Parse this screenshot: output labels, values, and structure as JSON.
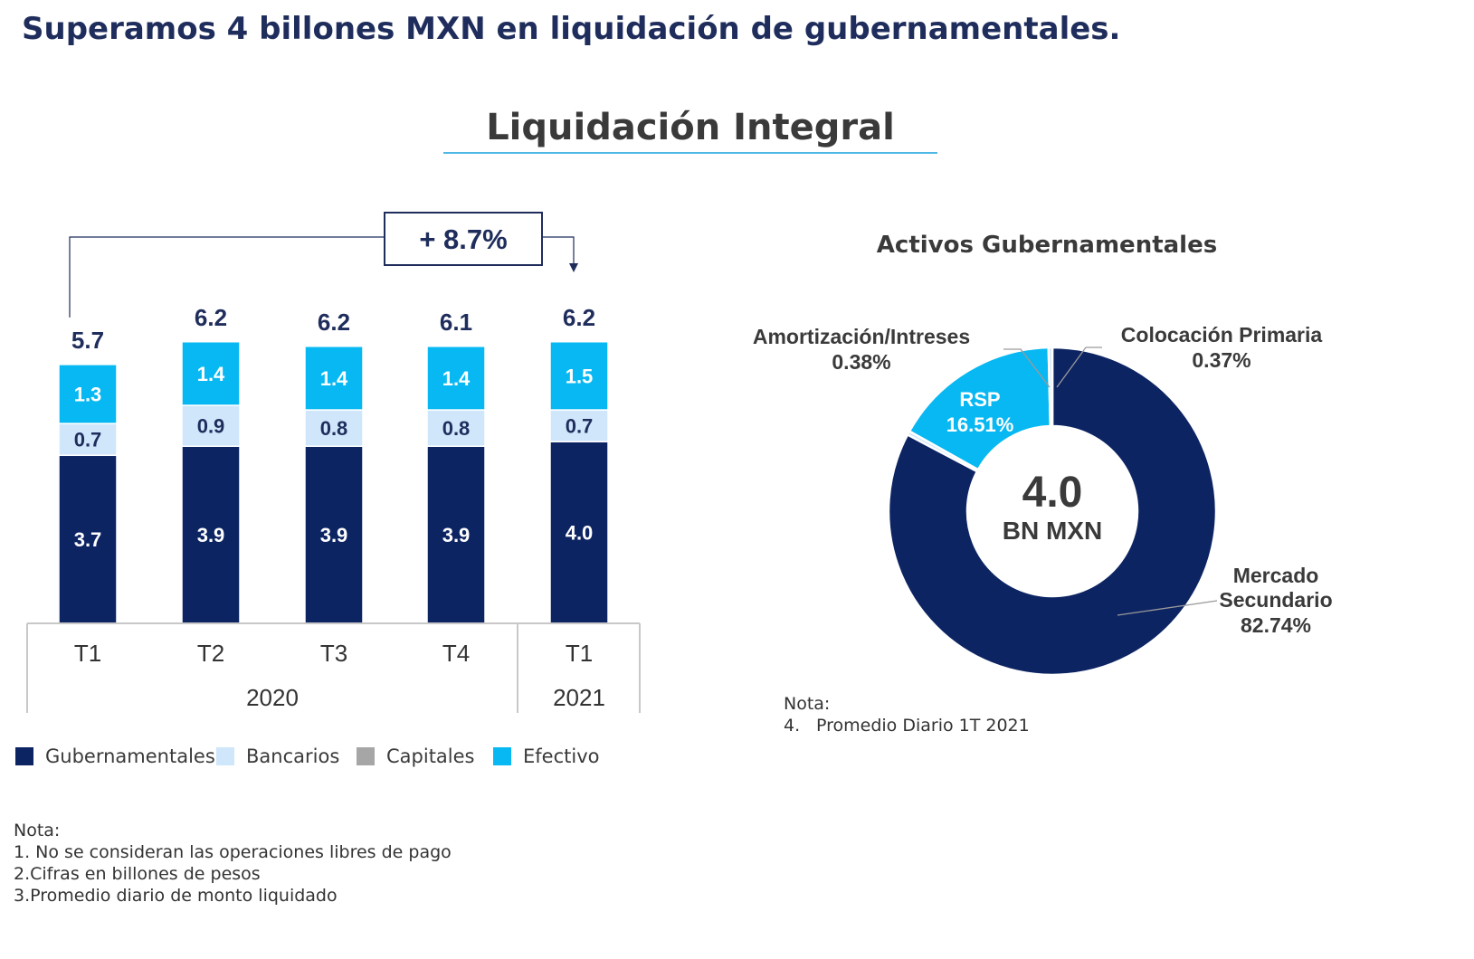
{
  "headline": "Superamos 4 billones MXN en liquidación de gubernamentales.",
  "section_title": "Liquidación Integral",
  "colors": {
    "gubernamentales": "#0d2463",
    "bancarios": "#cfe6fb",
    "capitales": "#a6a6a6",
    "efectivo": "#07b8f2",
    "headline": "#1f2d5c",
    "rule": "#4fb8e6"
  },
  "legend": [
    {
      "label": "Gubernamentales",
      "color": "#0d2463",
      "icon": "square"
    },
    {
      "label": "Bancarios",
      "color": "#cfe6fb",
      "icon": "square"
    },
    {
      "label": "Capitales",
      "color": "#a6a6a6",
      "icon": "square"
    },
    {
      "label": "Efectivo",
      "color": "#07b8f2",
      "icon": "square"
    }
  ],
  "growth_label": "+ 8.7%",
  "year_groups": [
    {
      "label": "2020",
      "span": 4
    },
    {
      "label": "2021",
      "span": 1
    }
  ],
  "notes_left": {
    "title": "Nota:",
    "lines": [
      "1. No se consideran las operaciones libres de pago",
      "2.Cifras en billones de pesos",
      "3.Promedio diario de monto liquidado"
    ]
  },
  "notes_right": {
    "title": "Nota:",
    "number": "4.",
    "line": "Promedio Diario 1T 2021"
  },
  "chart_data": [
    {
      "type": "bar",
      "stacked": true,
      "categories": [
        "T1",
        "T2",
        "T3",
        "T4",
        "T1"
      ],
      "series": [
        {
          "name": "Gubernamentales",
          "values": [
            3.7,
            3.9,
            3.9,
            3.9,
            4.0
          ]
        },
        {
          "name": "Bancarios",
          "values": [
            0.7,
            0.9,
            0.8,
            0.8,
            0.7
          ]
        },
        {
          "name": "Capitales",
          "values": [
            0,
            0,
            0,
            0,
            0
          ]
        },
        {
          "name": "Efectivo",
          "values": [
            1.3,
            1.4,
            1.4,
            1.4,
            1.5
          ]
        }
      ],
      "totals": [
        "5.7",
        "6.2",
        "6.2",
        "6.1",
        "6.2"
      ],
      "segment_labels": [
        [
          "3.7",
          "0.7",
          "1.3"
        ],
        [
          "3.9",
          "0.9",
          "1.4"
        ],
        [
          "3.9",
          "0.8",
          "1.4"
        ],
        [
          "3.9",
          "0.8",
          "1.4"
        ],
        [
          "4.0",
          "0.7",
          "1.5"
        ]
      ],
      "ylim": [
        0,
        6.3
      ]
    },
    {
      "type": "pie",
      "donut": true,
      "title": "Activos Gubernamentales",
      "center_value": "4.0",
      "center_unit": "BN MXN",
      "slices": [
        {
          "label": "Mercado Secundario",
          "value": 82.74,
          "display": "82.74%",
          "color": "#0d2463"
        },
        {
          "label": "Amortización/Intreses",
          "value": 0.38,
          "display": "0.38%",
          "color": "#cfe6fb"
        },
        {
          "label": "RSP",
          "value": 16.51,
          "display": "16.51%",
          "color": "#07b8f2"
        },
        {
          "label": "Colocación Primaria",
          "value": 0.37,
          "display": "0.37%",
          "color": "#cfe6fb"
        }
      ]
    }
  ]
}
